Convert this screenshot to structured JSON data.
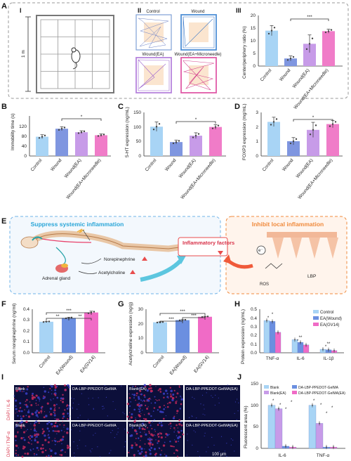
{
  "panels": {
    "A": "A",
    "B": "B",
    "C": "C",
    "D": "D",
    "E": "E",
    "F": "F",
    "G": "G",
    "H": "H",
    "I": "I",
    "J": "J"
  },
  "roman": {
    "i": "I",
    "ii": "II",
    "iii": "III"
  },
  "arena": {
    "scale": "1 m"
  },
  "track_titles": [
    "Control",
    "Wound",
    "Wound(EA)",
    "Wound(EA+Microneedle)"
  ],
  "colors": {
    "control": "#a8d4f5",
    "wound": "#7f96e0",
    "ea": "#c79be8",
    "eam": "#f07cc8",
    "lightblue": "#a8d4f5",
    "blue": "#6b8fe0",
    "pink": "#f06bc6",
    "orange": "#f08a3c",
    "blueframe": "#6fb3e8"
  },
  "chart_data": [
    {
      "id": "A3",
      "type": "bar",
      "ylabel": "Center/periphery ratio (%)",
      "categories": [
        "Control",
        "Wound",
        "Wound(EA)",
        "Wound(EA+Microneedle)"
      ],
      "values": [
        14,
        3,
        8.8,
        13.8
      ],
      "errors": [
        2,
        1,
        3.5,
        0.8
      ],
      "ylim": [
        0,
        20
      ],
      "yticks": [
        "0",
        "5",
        "10",
        "15",
        "20"
      ],
      "sig": [
        "***"
      ]
    },
    {
      "id": "B",
      "type": "bar",
      "ylabel": "Immobility time (s)",
      "categories": [
        "Control",
        "Wound",
        "Wound(EA)",
        "Wound(EA+Microneedle)"
      ],
      "values": [
        77,
        109,
        95,
        83
      ],
      "errors": [
        8,
        8,
        6,
        5
      ],
      "ylim": [
        0,
        160
      ],
      "yticks": [
        "0",
        "40",
        "80",
        "120"
      ],
      "sig": [
        "*"
      ]
    },
    {
      "id": "C",
      "type": "bar",
      "ylabel": "5-HT expression (ng/mL)",
      "categories": [
        "Control",
        "Wound",
        "Wound(EA)",
        "Wound(EA+Microneedle)"
      ],
      "values": [
        101,
        48,
        70,
        100
      ],
      "errors": [
        16,
        7,
        10,
        8
      ],
      "ylim": [
        0,
        150
      ],
      "yticks": [
        "0",
        "50",
        "100",
        "150"
      ],
      "sig": [
        "*"
      ]
    },
    {
      "id": "D",
      "type": "bar",
      "ylabel": "FOXP3 expression (mg/mL)",
      "categories": [
        "Control",
        "Wound",
        "Wound(EA)",
        "Wound(EA+Microneedle)"
      ],
      "values": [
        2.35,
        1.02,
        1.8,
        2.2
      ],
      "errors": [
        0.32,
        0.25,
        0.52,
        0.25
      ],
      "ylim": [
        0,
        3
      ],
      "yticks": [
        "0",
        "1",
        "2",
        "3"
      ],
      "sig": [
        "*"
      ]
    },
    {
      "id": "F",
      "type": "bar",
      "ylabel": "Serum norepinephrine (ng/ml)",
      "categories": [
        "Control",
        "EA(Wound)",
        "EA(GV14)"
      ],
      "values": [
        0.285,
        0.32,
        0.37
      ],
      "errors": [
        0.004,
        0.006,
        0.012
      ],
      "ylim": [
        0,
        0.4
      ],
      "yticks": [
        "0.0",
        "0.1",
        "0.2",
        "0.3",
        "0.4"
      ],
      "sig": [
        "**",
        "***",
        "**"
      ]
    },
    {
      "id": "G",
      "type": "bar",
      "ylabel": "Acetylcholine expression (ng/g)",
      "categories": [
        "Control",
        "EA(Wound)",
        "EA(GV14)"
      ],
      "values": [
        21,
        22.5,
        24.8
      ],
      "errors": [
        0.3,
        0.3,
        0.3
      ],
      "ylim": [
        0,
        30
      ],
      "yticks": [
        "0",
        "10",
        "20",
        "30"
      ],
      "sig": [
        "***",
        "***",
        "***"
      ]
    },
    {
      "id": "H",
      "type": "bar",
      "ylabel": "Protein expression (ng/mL)",
      "groups": [
        "TNF-α",
        "IL-6",
        "IL-1β"
      ],
      "series": [
        {
          "name": "Control",
          "values": [
            0.37,
            0.15,
            0.04
          ]
        },
        {
          "name": "EA(Wound)",
          "values": [
            0.36,
            0.12,
            0.035
          ]
        },
        {
          "name": "EA(GV14)",
          "values": [
            0.235,
            0.09,
            0.025
          ]
        }
      ],
      "ylim": [
        0,
        0.5
      ],
      "yticks": [
        "0.0",
        "0.1",
        "0.2",
        "0.3",
        "0.4",
        "0.5"
      ],
      "sig": [
        "*",
        "*",
        "**",
        "*",
        "**",
        "*"
      ]
    },
    {
      "id": "J",
      "type": "bar",
      "ylabel": "Fluorescent area (%)",
      "groups": [
        "IL-6",
        "TNF-α"
      ],
      "series": [
        {
          "name": "Blank",
          "values": [
            100,
            100
          ]
        },
        {
          "name": "Blank(EA)",
          "values": [
            92,
            58
          ]
        },
        {
          "name": "DA-LBP-PPEDOT-GelMA",
          "values": [
            5,
            3
          ]
        },
        {
          "name": "DA-LBP-PPEDOT-GelMA(EA)",
          "values": [
            3,
            3
          ]
        }
      ],
      "ylim": [
        0,
        150
      ],
      "yticks": [
        "0",
        "50",
        "100",
        "150"
      ],
      "sig": [
        "*",
        "*",
        "*",
        "*",
        "*",
        "*",
        "*",
        "*"
      ]
    }
  ],
  "E": {
    "left_title": "Suppress systemic inflammation",
    "right_title": "Inhibit local inflammation",
    "adrenal": "Adrenal gland",
    "nor": "Norepinephrine",
    "ach": "Acetylcholine",
    "infl": "Inflammatory factors",
    "lbp": "LBP",
    "ros": "ROS",
    "e": "e⁻"
  },
  "I": {
    "tiles": [
      "Blank",
      "DA-LBP-PPEDOT-GelMA",
      "Blank(EA)",
      "DA-LBP-PPEDOT-GelMA(EA)",
      "Blank",
      "DA-LBP-PPEDOT-GelMA",
      "Blank(EA)",
      "DA-LBP-PPEDOT-GelMA(EA)"
    ],
    "row1": "DAPI / IL-6",
    "row2": "DAPI / TNF-α",
    "scale": "100 μm"
  }
}
